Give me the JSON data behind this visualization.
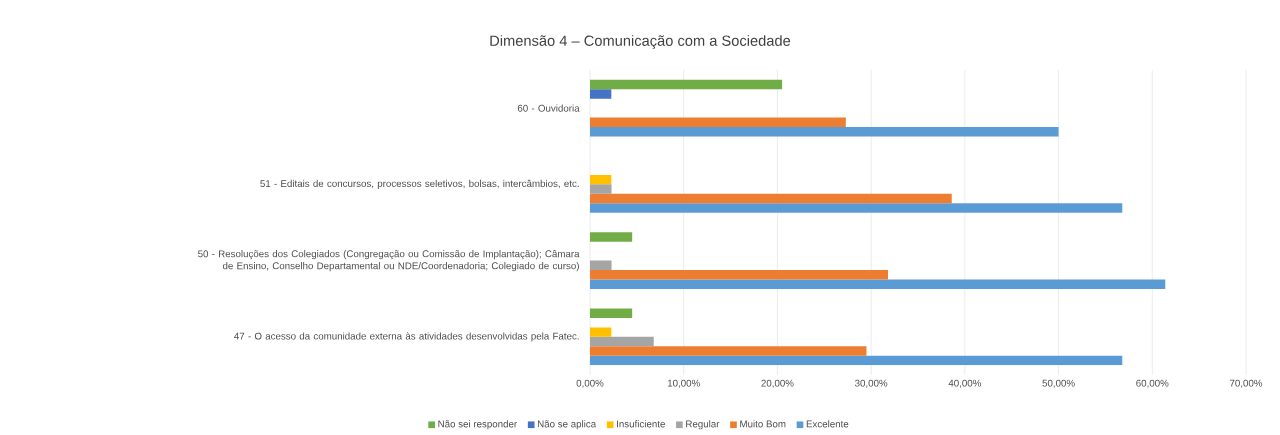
{
  "chart_data": {
    "type": "bar",
    "orientation": "horizontal",
    "title": "Dimensão 4 – Comunicação com a Sociedade",
    "categories": [
      "60 - Ouvidoria",
      "51 - Editais de concursos, processos seletivos, bolsas, intercâmbios, etc.",
      "50 - Resoluções dos Colegiados (Congregação ou Comissão de Implantação); Câmara de Ensino, Conselho Departamental ou NDE/Coordenadoria; Colegiado de curso)",
      "47 - O acesso da comunidade externa às atividades desenvolvidas pela Fatec."
    ],
    "series": [
      {
        "name": "Não sei responder",
        "color": "#70ad47",
        "values": [
          20.5,
          null,
          4.5,
          4.5
        ]
      },
      {
        "name": "Não se aplica",
        "color": "#4472c4",
        "values": [
          2.3,
          null,
          null,
          null
        ]
      },
      {
        "name": "Insuficiente",
        "color": "#ffc000",
        "values": [
          null,
          2.3,
          null,
          2.3
        ]
      },
      {
        "name": "Regular",
        "color": "#a5a5a5",
        "values": [
          null,
          2.3,
          2.3,
          6.8
        ]
      },
      {
        "name": "Muito Bom",
        "color": "#ed7d31",
        "values": [
          27.3,
          38.6,
          31.8,
          29.5
        ]
      },
      {
        "name": "Excelente",
        "color": "#5b9bd5",
        "values": [
          50,
          56.8,
          61.4,
          56.8
        ]
      }
    ],
    "xlim": [
      0,
      70
    ],
    "xticks": [
      {
        "value": 0,
        "label": "0,00%"
      },
      {
        "value": 10,
        "label": "10,00%"
      },
      {
        "value": 20,
        "label": "20,00%"
      },
      {
        "value": 30,
        "label": "30,00%"
      },
      {
        "value": 40,
        "label": "40,00%"
      },
      {
        "value": 50,
        "label": "50,00%"
      },
      {
        "value": 60,
        "label": "60,00%"
      },
      {
        "value": 70,
        "label": "70,00%"
      }
    ],
    "grid": "x",
    "legend": "bottom"
  }
}
